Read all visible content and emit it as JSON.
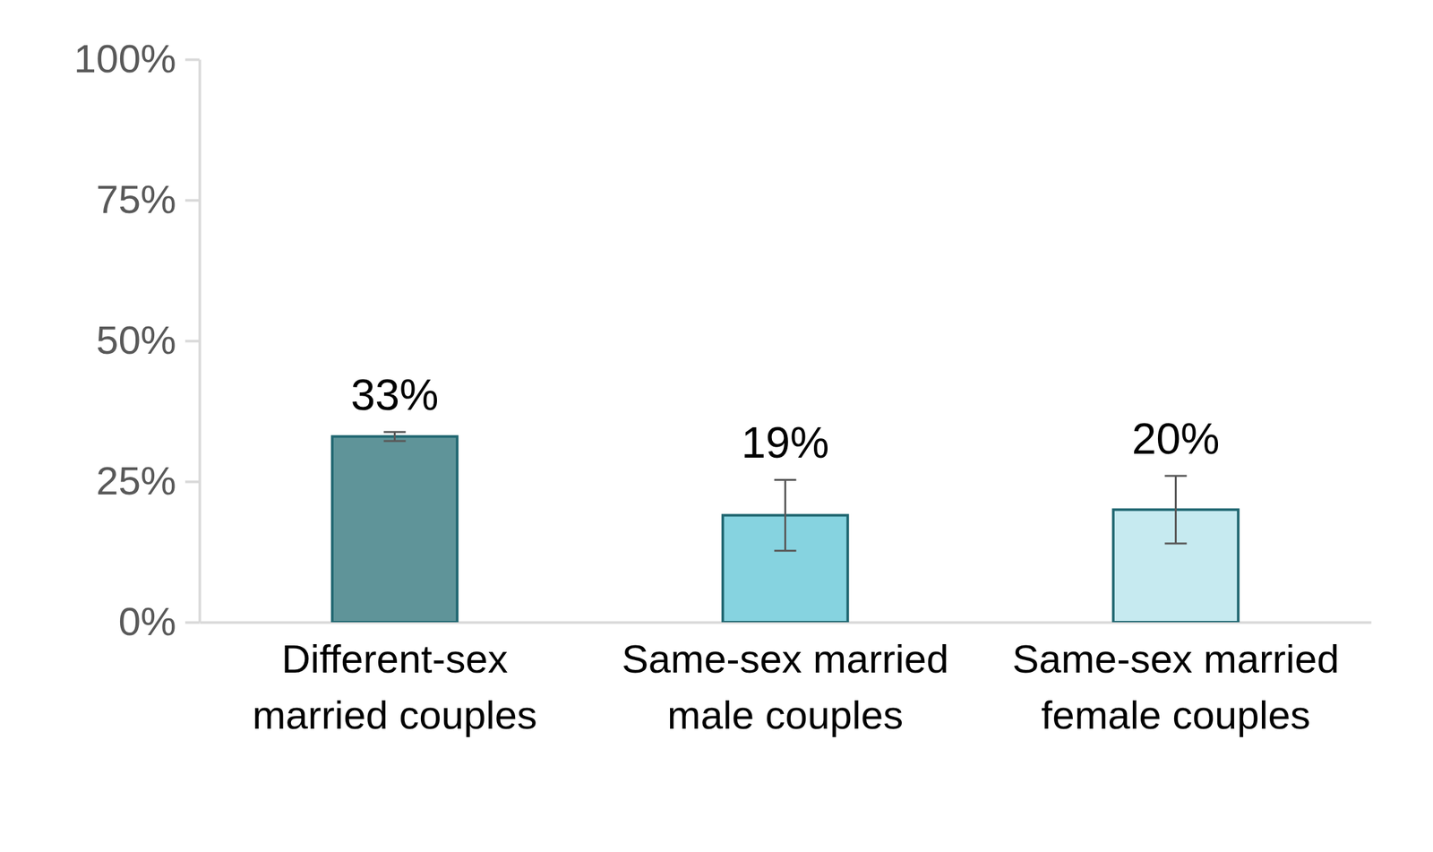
{
  "chart_data": {
    "type": "bar",
    "categories": [
      "Different-sex married couples",
      "Same-sex married male couples",
      "Same-sex married female couples"
    ],
    "values": [
      33,
      19,
      20
    ],
    "value_labels": [
      "33%",
      "19%",
      "20%"
    ],
    "errors": [
      0.8,
      6.3,
      6
    ],
    "colors": [
      "#5f9499",
      "#86d3e0",
      "#c6eaf0"
    ],
    "ylim": [
      0,
      100
    ],
    "yticks": [
      {
        "value": 0,
        "label": "0%"
      },
      {
        "value": 25,
        "label": "25%"
      },
      {
        "value": 50,
        "label": "50%"
      },
      {
        "value": 75,
        "label": "75%"
      },
      {
        "value": 100,
        "label": "100%"
      }
    ],
    "grid": false,
    "data_labels": true
  }
}
